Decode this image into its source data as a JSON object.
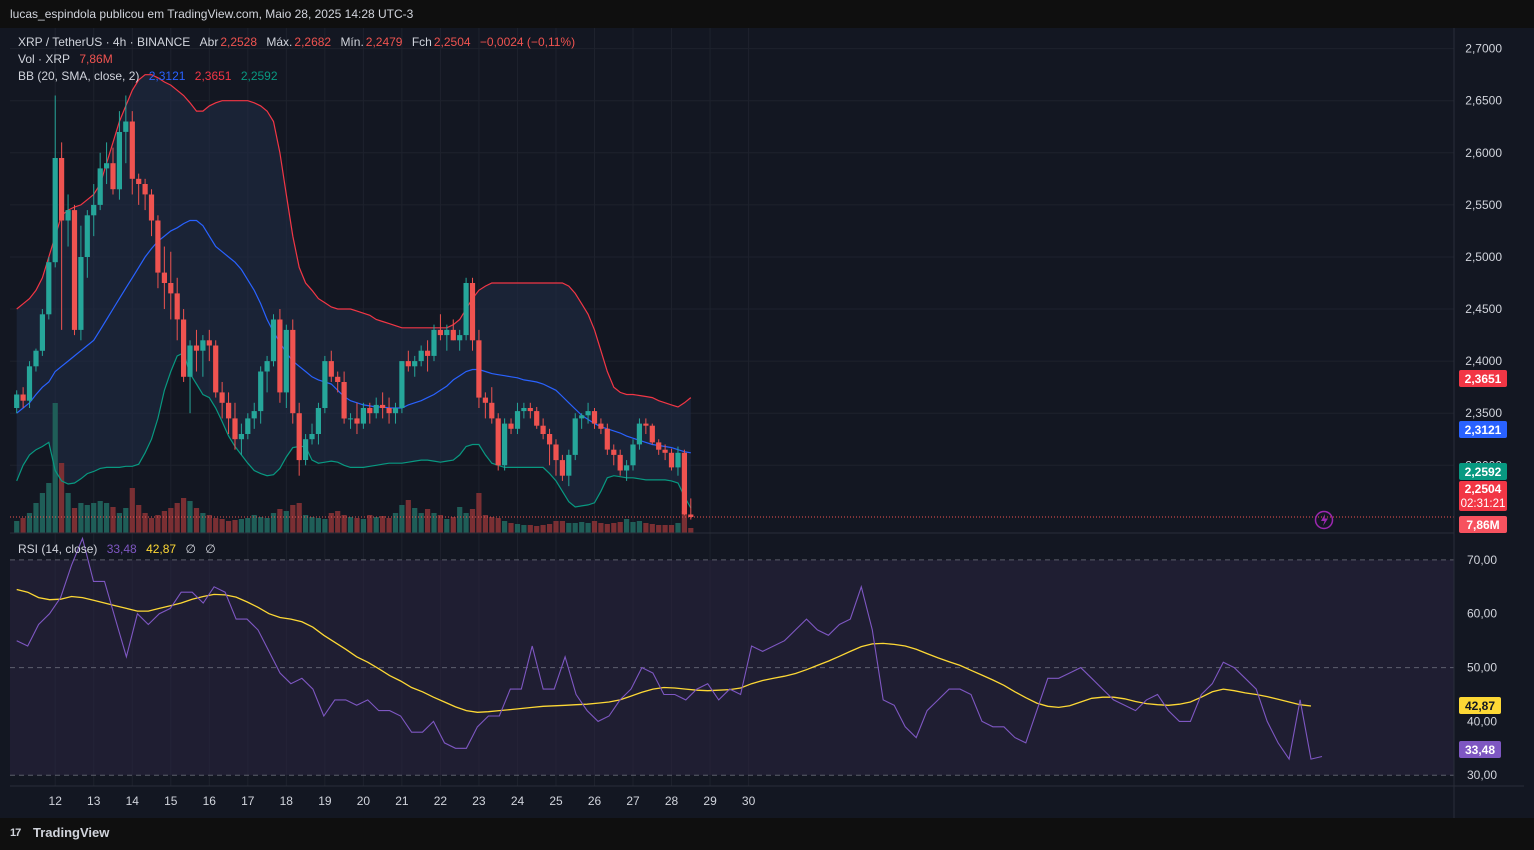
{
  "header": {
    "publisher_line": "lucas_espindola publicou em TradingView.com, Maio 28, 2025 14:28 UTC-3"
  },
  "footer": {
    "brand": "TradingView",
    "logo_text": "17"
  },
  "legend": {
    "symbol": "XRP / TetherUS · 4h · BINANCE",
    "open_label": "Abr",
    "open": "2,2528",
    "high_label": "Máx.",
    "high": "2,2682",
    "low_label": "Mín.",
    "low": "2,2479",
    "close_label": "Fch",
    "close": "2,2504",
    "change": "−0,0024 (−0,11%)",
    "vol_label": "Vol · XRP",
    "vol_value": "7,86M",
    "bb_label": "BB (20, SMA, close, 2)",
    "bb_basis": "2,3121",
    "bb_upper": "2,3651",
    "bb_lower": "2,2592",
    "rsi_label": "RSI (14, close)",
    "rsi_value": "33,48",
    "rsi_ma": "42,87",
    "rsi_extra1": "∅",
    "rsi_extra2": "∅"
  },
  "price_badges": {
    "upper": "2,3651",
    "basis": "2,3121",
    "lower": "2,2592",
    "last": "2,2504",
    "countdown": "02:31:21",
    "volume": "7,86M"
  },
  "rsi_badges": {
    "ma": "42,87",
    "rsi": "33,48"
  },
  "colors": {
    "up": "#26a69a",
    "down": "#ef5350",
    "bb_upper": "#f23645",
    "bb_basis": "#2962ff",
    "bb_lower": "#089981",
    "rsi": "#7e57c2",
    "rsi_ma": "#fdd835"
  },
  "chart_data": {
    "type": "candlestick",
    "timeframe": "4h",
    "price_ticks": [
      "2,7000",
      "2,6500",
      "2,6000",
      "2,5500",
      "2,5000",
      "2,4500",
      "2,4000",
      "2,3500",
      "2,3000"
    ],
    "price_range": [
      2.235,
      2.715
    ],
    "rsi_ticks": [
      "70,00",
      "60,00",
      "50,00",
      "40,00",
      "30,00"
    ],
    "rsi_range": [
      28,
      75
    ],
    "date_ticks": [
      {
        "label": "12",
        "idx": 6
      },
      {
        "label": "13",
        "idx": 12
      },
      {
        "label": "14",
        "idx": 18
      },
      {
        "label": "15",
        "idx": 24
      },
      {
        "label": "16",
        "idx": 30
      },
      {
        "label": "17",
        "idx": 36
      },
      {
        "label": "18",
        "idx": 42
      },
      {
        "label": "19",
        "idx": 48
      },
      {
        "label": "20",
        "idx": 54
      },
      {
        "label": "21",
        "idx": 60
      },
      {
        "label": "22",
        "idx": 66
      },
      {
        "label": "23",
        "idx": 72
      },
      {
        "label": "24",
        "idx": 78
      },
      {
        "label": "25",
        "idx": 84
      },
      {
        "label": "26",
        "idx": 90
      },
      {
        "label": "27",
        "idx": 96
      },
      {
        "label": "28",
        "idx": 102
      },
      {
        "label": "29",
        "idx": 108
      },
      {
        "label": "30",
        "idx": 114
      }
    ],
    "ohlc": [
      [
        2.355,
        2.372,
        2.35,
        2.368
      ],
      [
        2.368,
        2.375,
        2.355,
        2.362
      ],
      [
        2.362,
        2.4,
        2.355,
        2.395
      ],
      [
        2.395,
        2.412,
        2.39,
        2.41
      ],
      [
        2.41,
        2.45,
        2.405,
        2.445
      ],
      [
        2.445,
        2.5,
        2.44,
        2.495
      ],
      [
        2.495,
        2.655,
        2.49,
        2.595
      ],
      [
        2.595,
        2.61,
        2.43,
        2.535
      ],
      [
        2.535,
        2.56,
        2.51,
        2.545
      ],
      [
        2.545,
        2.55,
        2.425,
        2.43
      ],
      [
        2.43,
        2.53,
        2.42,
        2.5
      ],
      [
        2.5,
        2.545,
        2.48,
        2.54
      ],
      [
        2.54,
        2.57,
        2.52,
        2.55
      ],
      [
        2.55,
        2.6,
        2.545,
        2.585
      ],
      [
        2.585,
        2.61,
        2.57,
        2.59
      ],
      [
        2.59,
        2.605,
        2.56,
        2.565
      ],
      [
        2.565,
        2.64,
        2.555,
        2.62
      ],
      [
        2.62,
        2.655,
        2.59,
        2.63
      ],
      [
        2.63,
        2.64,
        2.56,
        2.575
      ],
      [
        2.575,
        2.58,
        2.55,
        2.57
      ],
      [
        2.57,
        2.575,
        2.545,
        2.56
      ],
      [
        2.56,
        2.565,
        2.52,
        2.535
      ],
      [
        2.535,
        2.54,
        2.47,
        2.485
      ],
      [
        2.485,
        2.51,
        2.45,
        2.475
      ],
      [
        2.475,
        2.505,
        2.44,
        2.465
      ],
      [
        2.465,
        2.48,
        2.42,
        2.44
      ],
      [
        2.44,
        2.45,
        2.38,
        2.385
      ],
      [
        2.385,
        2.42,
        2.35,
        2.415
      ],
      [
        2.415,
        2.43,
        2.39,
        2.41
      ],
      [
        2.41,
        2.425,
        2.385,
        2.42
      ],
      [
        2.42,
        2.43,
        2.4,
        2.415
      ],
      [
        2.415,
        2.42,
        2.365,
        2.37
      ],
      [
        2.37,
        2.38,
        2.345,
        2.36
      ],
      [
        2.36,
        2.37,
        2.33,
        2.345
      ],
      [
        2.345,
        2.36,
        2.315,
        2.325
      ],
      [
        2.325,
        2.34,
        2.31,
        2.33
      ],
      [
        2.33,
        2.35,
        2.325,
        2.345
      ],
      [
        2.345,
        2.36,
        2.335,
        2.352
      ],
      [
        2.352,
        2.395,
        2.34,
        2.39
      ],
      [
        2.39,
        2.405,
        2.37,
        2.4
      ],
      [
        2.4,
        2.445,
        2.395,
        2.44
      ],
      [
        2.44,
        2.45,
        2.36,
        2.37
      ],
      [
        2.37,
        2.435,
        2.355,
        2.43
      ],
      [
        2.43,
        2.44,
        2.34,
        2.35
      ],
      [
        2.35,
        2.36,
        2.29,
        2.305
      ],
      [
        2.305,
        2.33,
        2.3,
        2.325
      ],
      [
        2.325,
        2.34,
        2.32,
        2.33
      ],
      [
        2.33,
        2.36,
        2.32,
        2.355
      ],
      [
        2.355,
        2.405,
        2.35,
        2.4
      ],
      [
        2.4,
        2.41,
        2.38,
        2.385
      ],
      [
        2.385,
        2.39,
        2.37,
        2.38
      ],
      [
        2.38,
        2.39,
        2.34,
        2.345
      ],
      [
        2.345,
        2.35,
        2.335,
        2.345
      ],
      [
        2.345,
        2.36,
        2.33,
        2.34
      ],
      [
        2.34,
        2.36,
        2.335,
        2.355
      ],
      [
        2.355,
        2.36,
        2.34,
        2.35
      ],
      [
        2.35,
        2.365,
        2.345,
        2.358
      ],
      [
        2.358,
        2.37,
        2.345,
        2.355
      ],
      [
        2.355,
        2.365,
        2.34,
        2.35
      ],
      [
        2.35,
        2.36,
        2.34,
        2.355
      ],
      [
        2.355,
        2.4,
        2.35,
        2.4
      ],
      [
        2.4,
        2.41,
        2.39,
        2.395
      ],
      [
        2.395,
        2.405,
        2.385,
        2.4
      ],
      [
        2.4,
        2.415,
        2.395,
        2.41
      ],
      [
        2.41,
        2.42,
        2.39,
        2.405
      ],
      [
        2.405,
        2.435,
        2.4,
        2.43
      ],
      [
        2.43,
        2.445,
        2.42,
        2.425
      ],
      [
        2.425,
        2.435,
        2.41,
        2.43
      ],
      [
        2.43,
        2.44,
        2.42,
        2.42
      ],
      [
        2.42,
        2.43,
        2.41,
        2.425
      ],
      [
        2.425,
        2.48,
        2.42,
        2.475
      ],
      [
        2.475,
        2.48,
        2.41,
        2.42
      ],
      [
        2.42,
        2.43,
        2.355,
        2.365
      ],
      [
        2.365,
        2.37,
        2.345,
        2.36
      ],
      [
        2.36,
        2.375,
        2.34,
        2.345
      ],
      [
        2.345,
        2.35,
        2.295,
        2.3
      ],
      [
        2.3,
        2.345,
        2.295,
        2.34
      ],
      [
        2.34,
        2.345,
        2.33,
        2.335
      ],
      [
        2.335,
        2.36,
        2.33,
        2.352
      ],
      [
        2.352,
        2.36,
        2.345,
        2.355
      ],
      [
        2.355,
        2.36,
        2.345,
        2.352
      ],
      [
        2.352,
        2.356,
        2.335,
        2.338
      ],
      [
        2.338,
        2.345,
        2.325,
        2.33
      ],
      [
        2.33,
        2.335,
        2.3,
        2.32
      ],
      [
        2.32,
        2.325,
        2.29,
        2.305
      ],
      [
        2.305,
        2.31,
        2.285,
        2.29
      ],
      [
        2.29,
        2.315,
        2.28,
        2.31
      ],
      [
        2.31,
        2.35,
        2.305,
        2.345
      ],
      [
        2.345,
        2.35,
        2.335,
        2.348
      ],
      [
        2.348,
        2.36,
        2.34,
        2.352
      ],
      [
        2.352,
        2.355,
        2.335,
        2.34
      ],
      [
        2.34,
        2.345,
        2.33,
        2.335
      ],
      [
        2.335,
        2.34,
        2.31,
        2.315
      ],
      [
        2.315,
        2.32,
        2.3,
        2.31
      ],
      [
        2.31,
        2.315,
        2.29,
        2.295
      ],
      [
        2.295,
        2.305,
        2.285,
        2.3
      ],
      [
        2.3,
        2.325,
        2.295,
        2.32
      ],
      [
        2.32,
        2.345,
        2.315,
        2.34
      ],
      [
        2.34,
        2.345,
        2.33,
        2.338
      ],
      [
        2.338,
        2.34,
        2.32,
        2.322
      ],
      [
        2.322,
        2.325,
        2.31,
        2.315
      ],
      [
        2.315,
        2.32,
        2.305,
        2.312
      ],
      [
        2.312,
        2.316,
        2.295,
        2.298
      ],
      [
        2.298,
        2.318,
        2.29,
        2.312
      ],
      [
        2.312,
        2.315,
        2.252,
        2.253
      ],
      [
        2.2528,
        2.2682,
        2.2479,
        2.2504
      ]
    ],
    "volume": [
      0.12,
      0.15,
      0.2,
      0.3,
      0.4,
      0.5,
      1.3,
      0.7,
      0.4,
      0.25,
      0.3,
      0.28,
      0.3,
      0.32,
      0.3,
      0.26,
      0.2,
      0.25,
      0.45,
      0.28,
      0.2,
      0.15,
      0.18,
      0.22,
      0.25,
      0.3,
      0.35,
      0.32,
      0.25,
      0.2,
      0.18,
      0.15,
      0.14,
      0.12,
      0.13,
      0.14,
      0.15,
      0.18,
      0.16,
      0.15,
      0.2,
      0.24,
      0.22,
      0.28,
      0.3,
      0.18,
      0.16,
      0.15,
      0.14,
      0.2,
      0.22,
      0.18,
      0.16,
      0.15,
      0.14,
      0.18,
      0.16,
      0.17,
      0.15,
      0.2,
      0.28,
      0.33,
      0.25,
      0.2,
      0.24,
      0.2,
      0.18,
      0.14,
      0.16,
      0.26,
      0.2,
      0.24,
      0.4,
      0.18,
      0.16,
      0.15,
      0.12,
      0.1,
      0.09,
      0.08,
      0.08,
      0.07,
      0.08,
      0.09,
      0.12,
      0.12,
      0.1,
      0.1,
      0.11,
      0.1,
      0.12,
      0.1,
      0.09,
      0.1,
      0.11,
      0.14,
      0.11,
      0.12,
      0.1,
      0.09,
      0.08,
      0.08,
      0.08,
      0.1,
      0.22,
      0.05
    ],
    "bb_upper": [
      2.45,
      2.455,
      2.46,
      2.468,
      2.48,
      2.5,
      2.52,
      2.54,
      2.545,
      2.548,
      2.55,
      2.555,
      2.56,
      2.57,
      2.59,
      2.61,
      2.63,
      2.645,
      2.66,
      2.67,
      2.675,
      2.675,
      2.672,
      2.668,
      2.665,
      2.66,
      2.655,
      2.648,
      2.64,
      2.64,
      2.645,
      2.648,
      2.65,
      2.65,
      2.65,
      2.65,
      2.65,
      2.648,
      2.645,
      2.64,
      2.63,
      2.6,
      2.56,
      2.52,
      2.49,
      2.475,
      2.468,
      2.46,
      2.456,
      2.452,
      2.45,
      2.45,
      2.45,
      2.448,
      2.446,
      2.444,
      2.44,
      2.438,
      2.436,
      2.434,
      2.432,
      2.432,
      2.432,
      2.432,
      2.432,
      2.432,
      2.432,
      2.432,
      2.435,
      2.44,
      2.45,
      2.46,
      2.468,
      2.472,
      2.475,
      2.475,
      2.475,
      2.475,
      2.475,
      2.475,
      2.475,
      2.475,
      2.475,
      2.475,
      2.475,
      2.475,
      2.472,
      2.465,
      2.455,
      2.445,
      2.43,
      2.41,
      2.39,
      2.375,
      2.37,
      2.368,
      2.368,
      2.367,
      2.366,
      2.365,
      2.362,
      2.36,
      2.358,
      2.356,
      2.36,
      2.365
    ],
    "bb_basis": [
      2.35,
      2.355,
      2.36,
      2.368,
      2.375,
      2.38,
      2.39,
      2.395,
      2.4,
      2.405,
      2.41,
      2.415,
      2.42,
      2.43,
      2.44,
      2.45,
      2.46,
      2.47,
      2.48,
      2.49,
      2.5,
      2.508,
      2.515,
      2.52,
      2.525,
      2.528,
      2.532,
      2.535,
      2.535,
      2.53,
      2.52,
      2.51,
      2.505,
      2.5,
      2.495,
      2.488,
      2.478,
      2.468,
      2.455,
      2.44,
      2.428,
      2.418,
      2.408,
      2.4,
      2.395,
      2.39,
      2.385,
      2.382,
      2.38,
      2.378,
      2.372,
      2.366,
      2.362,
      2.36,
      2.358,
      2.357,
      2.356,
      2.356,
      2.355,
      2.355,
      2.355,
      2.358,
      2.36,
      2.362,
      2.365,
      2.368,
      2.372,
      2.376,
      2.382,
      2.386,
      2.39,
      2.392,
      2.392,
      2.39,
      2.388,
      2.387,
      2.386,
      2.385,
      2.384,
      2.382,
      2.381,
      2.38,
      2.378,
      2.375,
      2.372,
      2.366,
      2.36,
      2.354,
      2.348,
      2.344,
      2.34,
      2.337,
      2.335,
      2.333,
      2.331,
      2.328,
      2.326,
      2.324,
      2.322,
      2.32,
      2.319,
      2.318,
      2.317,
      2.315,
      2.313,
      2.312
    ],
    "bb_lower": [
      2.285,
      2.3,
      2.31,
      2.315,
      2.318,
      2.322,
      2.295,
      2.285,
      2.282,
      2.283,
      2.287,
      2.292,
      2.294,
      2.297,
      2.298,
      2.298,
      2.298,
      2.299,
      2.299,
      2.301,
      2.312,
      2.325,
      2.345,
      2.372,
      2.39,
      2.405,
      2.408,
      2.388,
      2.378,
      2.368,
      2.365,
      2.355,
      2.342,
      2.328,
      2.318,
      2.31,
      2.302,
      2.295,
      2.292,
      2.29,
      2.291,
      2.297,
      2.308,
      2.317,
      2.318,
      2.318,
      2.305,
      2.302,
      2.303,
      2.304,
      2.303,
      2.3,
      2.298,
      2.298,
      2.298,
      2.299,
      2.3,
      2.301,
      2.302,
      2.302,
      2.302,
      2.303,
      2.304,
      2.305,
      2.305,
      2.304,
      2.303,
      2.304,
      2.305,
      2.31,
      2.318,
      2.32,
      2.32,
      2.31,
      2.302,
      2.3,
      2.298,
      2.298,
      2.298,
      2.298,
      2.298,
      2.298,
      2.298,
      2.292,
      2.285,
      2.275,
      2.265,
      2.26,
      2.261,
      2.262,
      2.264,
      2.275,
      2.288,
      2.29,
      2.289,
      2.288,
      2.288,
      2.287,
      2.286,
      2.286,
      2.286,
      2.286,
      2.285,
      2.283,
      2.27,
      2.259
    ],
    "rsi": [
      55,
      54,
      58,
      60,
      63,
      69,
      74,
      66,
      66,
      59,
      52,
      60,
      58,
      60,
      61,
      64,
      64,
      62,
      65,
      64,
      59,
      59,
      57,
      53,
      49,
      47,
      48,
      46,
      41,
      44,
      44,
      43,
      44,
      42,
      42,
      41,
      38,
      38,
      40,
      36,
      35,
      35,
      39,
      41,
      41,
      46,
      46,
      54,
      46,
      46,
      52,
      45,
      42,
      40,
      41,
      44,
      46,
      50,
      49,
      45,
      45,
      44,
      46,
      47,
      44,
      46,
      45,
      54,
      53,
      54,
      55,
      57,
      59,
      57,
      56,
      58,
      59,
      65,
      57,
      44,
      43,
      39,
      37,
      42,
      44,
      46,
      46,
      45,
      40,
      39,
      39,
      37,
      36,
      42,
      48,
      48,
      49,
      50,
      48,
      46,
      44,
      43,
      42,
      44,
      45,
      42,
      40,
      40,
      45,
      47,
      51,
      50,
      48,
      46,
      40,
      36,
      33,
      44,
      33,
      33.48
    ],
    "rsi_ma": [
      64.5,
      64,
      63,
      62.6,
      62.7,
      63.2,
      63,
      62.5,
      62,
      61.5,
      61,
      60.5,
      60.5,
      61,
      61.5,
      62,
      62.7,
      63.2,
      63.6,
      63.5,
      63.1,
      62.2,
      61.2,
      60,
      59.3,
      59,
      58.5,
      57.5,
      56,
      54.7,
      53.4,
      52,
      51,
      49.8,
      48.5,
      47.5,
      46.3,
      45.5,
      44.5,
      43.6,
      42.7,
      42,
      41.7,
      41.8,
      42,
      42.2,
      42.4,
      42.6,
      42.8,
      42.9,
      43,
      43.1,
      43.2,
      43.4,
      43.6,
      44,
      44.7,
      45.4,
      46,
      46.3,
      46.2,
      46,
      45.8,
      45.7,
      45.8,
      45.9,
      46.2,
      47,
      47.6,
      48,
      48.4,
      48.9,
      49.6,
      50.4,
      51.2,
      52.1,
      53,
      53.9,
      54.4,
      54.5,
      54.3,
      54,
      53.4,
      52.6,
      51.8,
      51.1,
      50.4,
      49.5,
      48.6,
      47.7,
      46.7,
      45.5,
      44.4,
      43.4,
      42.8,
      42.6,
      42.9,
      43.6,
      44.3,
      44.5,
      44.5,
      44.2,
      43.7,
      43.3,
      43.1,
      43,
      43.2,
      43.6,
      44.5,
      45.5,
      46,
      45.7,
      45.3,
      45,
      44.6,
      44.1,
      43.6,
      43.1,
      42.87
    ]
  }
}
